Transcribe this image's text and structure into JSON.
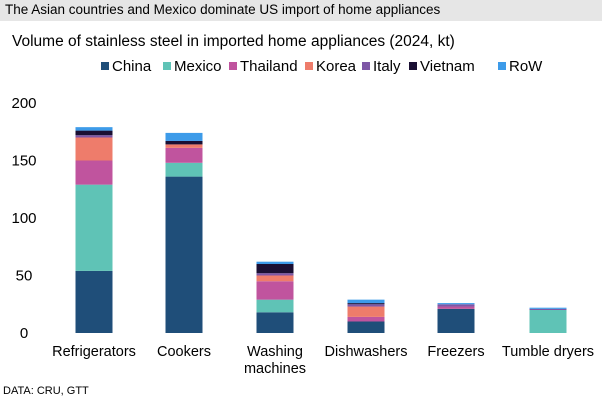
{
  "header": {
    "title": "The Asian countries and Mexico dominate US import of home appliances"
  },
  "footer": {
    "source": "DATA: CRU, GTT"
  },
  "chart_data": {
    "type": "bar",
    "stacked": true,
    "title": "Volume of stainless steel in imported home appliances (2024, kt)",
    "xlabel": "",
    "ylabel": "",
    "ylim": [
      0,
      200
    ],
    "yticks": [
      0,
      50,
      100,
      150,
      200
    ],
    "grid": false,
    "legend_position": "top",
    "categories": [
      "Refrigerators",
      "Cookers",
      "Washing machines",
      "Dishwashers",
      "Freezers",
      "Tumble dryers"
    ],
    "category_lines": [
      [
        "Refrigerators"
      ],
      [
        "Cookers"
      ],
      [
        "Washing",
        "machines"
      ],
      [
        "Dishwashers"
      ],
      [
        "Freezers"
      ],
      [
        "Tumble dryers"
      ]
    ],
    "series": [
      {
        "name": "China",
        "color": "#1f4e79",
        "values": [
          54,
          136,
          18,
          10,
          21,
          0
        ]
      },
      {
        "name": "Mexico",
        "color": "#5fc3b6",
        "values": [
          75,
          12,
          11,
          0,
          0,
          20
        ]
      },
      {
        "name": "Thailand",
        "color": "#c0549e",
        "values": [
          21,
          13,
          16,
          4,
          2,
          0
        ]
      },
      {
        "name": "Korea",
        "color": "#ee7c6b",
        "values": [
          20,
          3,
          5,
          9,
          0,
          0
        ]
      },
      {
        "name": "Italy",
        "color": "#7e57a6",
        "values": [
          2,
          0,
          2,
          2,
          2,
          1
        ]
      },
      {
        "name": "Vietnam",
        "color": "#1a0f33",
        "values": [
          4,
          3,
          8,
          1,
          0,
          0
        ]
      },
      {
        "name": "RoW",
        "color": "#3d9be9",
        "values": [
          3,
          7,
          2,
          3,
          1,
          1
        ]
      }
    ]
  }
}
